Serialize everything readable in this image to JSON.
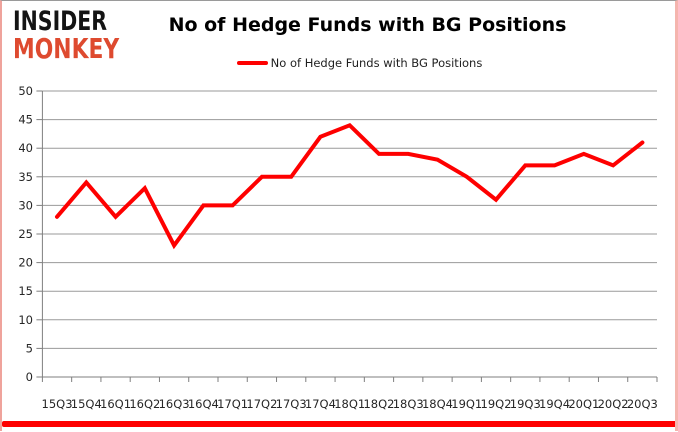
{
  "branding": {
    "logo_line1": "INSIDER",
    "logo_line2": "MONKEY",
    "logo_color_line1": "#141414",
    "logo_color_line2": "#de4a2f"
  },
  "header": {
    "title": "No of Hedge Funds with BG Positions"
  },
  "legend": {
    "label": "No of Hedge Funds with BG Positions",
    "line_color": "#fe0000",
    "position": "top"
  },
  "colors": {
    "series_red": "#fe0000",
    "grid_gray": "#9a9a9a",
    "axis_gray": "#7f7f7f",
    "accent_red_bar": "#fe0000",
    "frame_pink": "#f5b5ae"
  },
  "chart_data": {
    "type": "line",
    "title": "No of Hedge Funds with BG Positions",
    "xlabel": "",
    "ylabel": "",
    "categories": [
      "15Q3",
      "15Q4",
      "16Q1",
      "16Q2",
      "16Q3",
      "16Q4",
      "17Q1",
      "17Q2",
      "17Q3",
      "17Q4",
      "18Q1",
      "18Q2",
      "18Q3",
      "18Q4",
      "19Q1",
      "19Q2",
      "19Q3",
      "19Q4",
      "20Q1",
      "20Q2",
      "20Q3"
    ],
    "series": [
      {
        "name": "No of Hedge Funds with BG Positions",
        "color": "#fe0000",
        "values": [
          28,
          34,
          28,
          33,
          23,
          30,
          30,
          35,
          35,
          42,
          44,
          39,
          39,
          38,
          35,
          31,
          37,
          37,
          39,
          37,
          41
        ]
      }
    ],
    "ylim": [
      0,
      50
    ],
    "y_tick_step": 5,
    "y_tick_labels": [
      "0",
      "5",
      "10",
      "15",
      "20",
      "25",
      "30",
      "35",
      "40",
      "45",
      "50"
    ],
    "grid": "horizontal",
    "grid_color": "#9a9a9a",
    "axis_color": "#7f7f7f",
    "legend_position": "top-center"
  }
}
